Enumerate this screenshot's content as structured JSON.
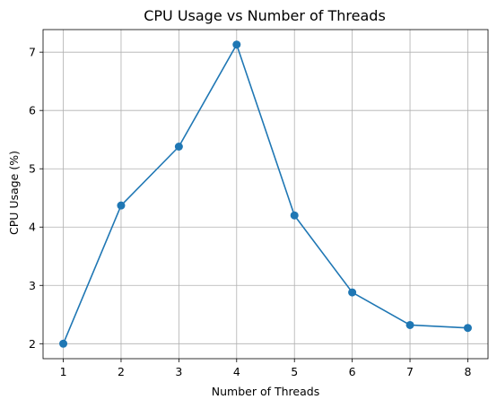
{
  "chart_data": {
    "type": "line",
    "title": "CPU Usage vs Number of Threads",
    "xlabel": "Number of Threads",
    "ylabel": "CPU Usage (%)",
    "x": [
      1,
      2,
      3,
      4,
      5,
      6,
      7,
      8
    ],
    "series": [
      {
        "values": [
          2.0,
          4.37,
          5.38,
          7.13,
          4.2,
          2.88,
          2.32,
          2.27
        ],
        "color": "#1f77b4",
        "marker": "circle"
      }
    ],
    "xticks": [
      "1",
      "2",
      "3",
      "4",
      "5",
      "6",
      "7",
      "8"
    ],
    "yticks": [
      "2",
      "3",
      "4",
      "5",
      "6",
      "7"
    ],
    "xlim": [
      0.65,
      8.35
    ],
    "ylim": [
      1.743,
      7.387
    ],
    "grid": true
  }
}
